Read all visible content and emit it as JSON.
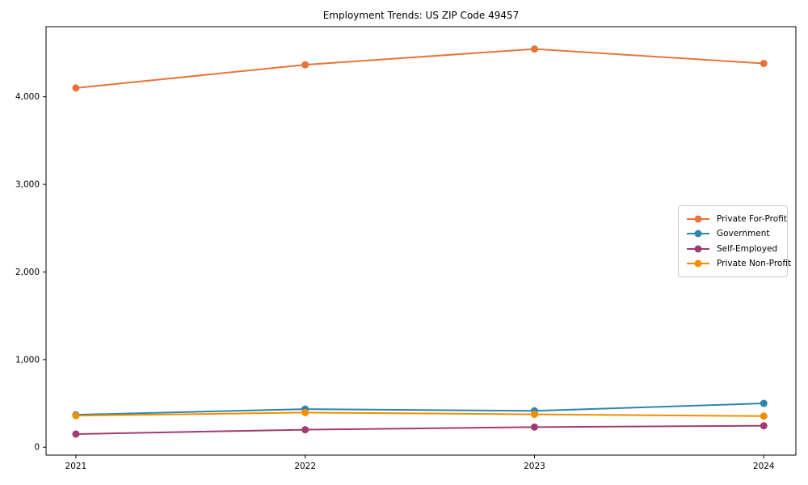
{
  "chart_data": {
    "type": "line",
    "title": "Employment Trends: US ZIP Code 49457",
    "xlabel": "",
    "ylabel": "",
    "x": [
      2021,
      2022,
      2023,
      2024
    ],
    "x_tick_labels": [
      "2021",
      "2022",
      "2023",
      "2024"
    ],
    "y_ticks": [
      0,
      1000,
      2000,
      3000,
      4000
    ],
    "y_tick_labels": [
      "0",
      "1,000",
      "2,000",
      "3,000",
      "4,000"
    ],
    "xlim": [
      2020.87,
      2024.14
    ],
    "ylim": [
      -90,
      4800
    ],
    "grid": false,
    "legend_position": "center-right",
    "background_color": "#ffffff",
    "axis_color": "#000000",
    "series": [
      {
        "name": "Private For-Profit",
        "color": "#E8743B",
        "values": [
          4100,
          4365,
          4545,
          4380
        ]
      },
      {
        "name": "Government",
        "color": "#2E86AB",
        "values": [
          370,
          435,
          415,
          500
        ]
      },
      {
        "name": "Self-Employed",
        "color": "#A23B72",
        "values": [
          150,
          200,
          230,
          245
        ]
      },
      {
        "name": "Private Non-Profit",
        "color": "#F18F01",
        "values": [
          360,
          395,
          375,
          355
        ]
      }
    ]
  }
}
